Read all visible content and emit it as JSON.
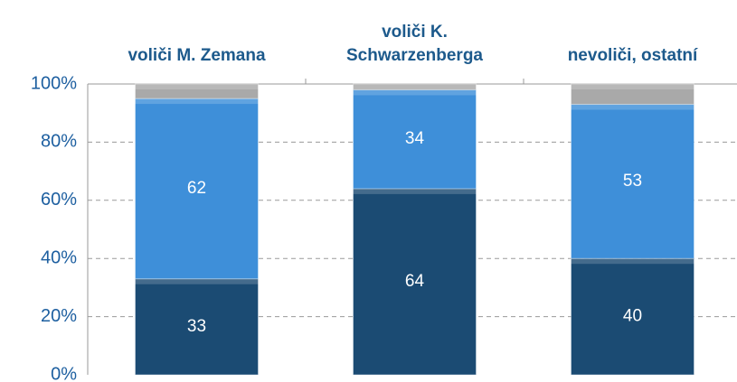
{
  "chart_data": {
    "type": "stacked_bar",
    "categories": [
      "voliči M. Zemana",
      "voliči K. Schwarzenberga",
      "nevoliči, ostatní"
    ],
    "series": [
      {
        "color": "#1b4b73",
        "values": [
          33,
          64,
          40
        ]
      },
      {
        "color": "#3e8fd9",
        "values": [
          62,
          34,
          53
        ]
      },
      {
        "color": "#a9a9a9",
        "values": [
          5,
          2,
          7
        ]
      }
    ],
    "value_labels_series": [
      0,
      1
    ],
    "ylim": [
      0,
      100
    ],
    "yticks": [
      {
        "value": 0,
        "label": "0%"
      },
      {
        "value": 20,
        "label": "20%"
      },
      {
        "value": 40,
        "label": "40%"
      },
      {
        "value": 60,
        "label": "60%"
      },
      {
        "value": 80,
        "label": "80%"
      },
      {
        "value": 100,
        "label": "100%"
      }
    ],
    "grid": true
  }
}
